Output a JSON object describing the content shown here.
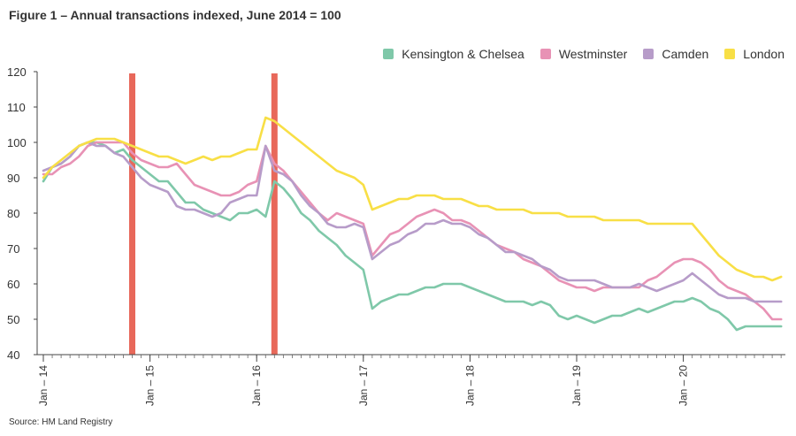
{
  "title": "Figure 1 – Annual transactions indexed, June 2014 = 100",
  "source": "Source: HM Land Registry",
  "chart_data": {
    "type": "line",
    "title": "Figure 1 – Annual transactions indexed, June 2014 = 100",
    "xlabel": "",
    "ylabel": "",
    "ylim": [
      40,
      120
    ],
    "yticks": [
      "40",
      "50",
      "60",
      "70",
      "80",
      "90",
      "100",
      "110",
      "120"
    ],
    "xlim": [
      "Jan 2014",
      "Dec 2020"
    ],
    "x_ticks": [
      "Jan – 14",
      "Jan – 15",
      "Jan – 16",
      "Jan – 17",
      "Jan – 18",
      "Jan – 19",
      "Jan – 20"
    ],
    "grid": false,
    "legend_position": "top-right",
    "x": [
      "Jan 2014",
      "Feb 2014",
      "Mar 2014",
      "Apr 2014",
      "May 2014",
      "Jun 2014",
      "Jul 2014",
      "Aug 2014",
      "Sep 2014",
      "Oct 2014",
      "Nov 2014",
      "Dec 2014",
      "Jan 2015",
      "Feb 2015",
      "Mar 2015",
      "Apr 2015",
      "May 2015",
      "Jun 2015",
      "Jul 2015",
      "Aug 2015",
      "Sep 2015",
      "Oct 2015",
      "Nov 2015",
      "Dec 2015",
      "Jan 2016",
      "Feb 2016",
      "Mar 2016",
      "Apr 2016",
      "May 2016",
      "Jun 2016",
      "Jul 2016",
      "Aug 2016",
      "Sep 2016",
      "Oct 2016",
      "Nov 2016",
      "Dec 2016",
      "Jan 2017",
      "Feb 2017",
      "Mar 2017",
      "Apr 2017",
      "May 2017",
      "Jun 2017",
      "Jul 2017",
      "Aug 2017",
      "Sep 2017",
      "Oct 2017",
      "Nov 2017",
      "Dec 2017",
      "Jan 2018",
      "Feb 2018",
      "Mar 2018",
      "Apr 2018",
      "May 2018",
      "Jun 2018",
      "Jul 2018",
      "Aug 2018",
      "Sep 2018",
      "Oct 2018",
      "Nov 2018",
      "Dec 2018",
      "Jan 2019",
      "Feb 2019",
      "Mar 2019",
      "Apr 2019",
      "May 2019",
      "Jun 2019",
      "Jul 2019",
      "Aug 2019",
      "Sep 2019",
      "Oct 2019",
      "Nov 2019",
      "Dec 2019",
      "Jan 2020",
      "Feb 2020",
      "Mar 2020",
      "Apr 2020",
      "May 2020",
      "Jun 2020",
      "Jul 2020",
      "Aug 2020",
      "Sep 2020",
      "Oct 2020",
      "Nov 2020",
      "Dec 2020"
    ],
    "series": [
      {
        "name": "Kensington & Chelsea",
        "color": "#7fc8a9",
        "values": [
          89,
          93,
          94,
          96,
          99,
          100,
          100,
          99,
          97,
          98,
          95,
          93,
          91,
          89,
          89,
          86,
          83,
          83,
          81,
          80,
          79,
          78,
          80,
          80,
          81,
          79,
          89,
          87,
          84,
          80,
          78,
          75,
          73,
          71,
          68,
          66,
          64,
          53,
          55,
          56,
          57,
          57,
          58,
          59,
          59,
          60,
          60,
          60,
          59,
          58,
          57,
          56,
          55,
          55,
          55,
          54,
          55,
          54,
          51,
          50,
          51,
          50,
          49,
          50,
          51,
          51,
          52,
          53,
          52,
          53,
          54,
          55,
          55,
          56,
          55,
          53,
          52,
          50,
          47,
          48,
          48,
          48,
          48,
          48
        ]
      },
      {
        "name": "Westminster",
        "color": "#e892b5",
        "values": [
          91,
          91,
          93,
          94,
          96,
          99,
          100,
          100,
          100,
          100,
          97,
          95,
          94,
          93,
          93,
          94,
          91,
          88,
          87,
          86,
          85,
          85,
          86,
          88,
          89,
          99,
          94,
          92,
          89,
          86,
          83,
          80,
          78,
          80,
          79,
          78,
          77,
          68,
          71,
          74,
          75,
          77,
          79,
          80,
          81,
          80,
          78,
          78,
          77,
          75,
          73,
          71,
          70,
          69,
          67,
          66,
          65,
          63,
          61,
          60,
          59,
          59,
          58,
          59,
          59,
          59,
          59,
          59,
          61,
          62,
          64,
          66,
          67,
          67,
          66,
          64,
          61,
          59,
          58,
          57,
          55,
          53,
          50,
          50
        ]
      },
      {
        "name": "Camden",
        "color": "#b79cc9",
        "values": [
          92,
          93,
          94,
          96,
          99,
          100,
          99,
          99,
          97,
          96,
          93,
          90,
          88,
          87,
          86,
          82,
          81,
          81,
          80,
          79,
          80,
          83,
          84,
          85,
          85,
          99,
          92,
          91,
          89,
          85,
          82,
          80,
          77,
          76,
          76,
          77,
          76,
          67,
          69,
          71,
          72,
          74,
          75,
          77,
          77,
          78,
          77,
          77,
          76,
          74,
          73,
          71,
          69,
          69,
          68,
          67,
          65,
          64,
          62,
          61,
          61,
          61,
          61,
          60,
          59,
          59,
          59,
          60,
          59,
          58,
          59,
          60,
          61,
          63,
          61,
          59,
          57,
          56,
          56,
          56,
          55,
          55,
          55,
          55
        ]
      },
      {
        "name": "London",
        "color": "#f8df46",
        "values": [
          90,
          93,
          95,
          97,
          99,
          100,
          101,
          101,
          101,
          100,
          99,
          98,
          97,
          96,
          96,
          95,
          94,
          95,
          96,
          95,
          96,
          96,
          97,
          98,
          98,
          107,
          106,
          104,
          102,
          100,
          98,
          96,
          94,
          92,
          91,
          90,
          88,
          81,
          82,
          83,
          84,
          84,
          85,
          85,
          85,
          84,
          84,
          84,
          83,
          82,
          82,
          81,
          81,
          81,
          81,
          80,
          80,
          80,
          80,
          79,
          79,
          79,
          79,
          78,
          78,
          78,
          78,
          78,
          77,
          77,
          77,
          77,
          77,
          77,
          74,
          71,
          68,
          66,
          64,
          63,
          62,
          62,
          61,
          62
        ]
      }
    ],
    "annotations": [
      {
        "type": "vertical-bar",
        "x": "Nov 2014",
        "color": "#e8685a"
      },
      {
        "type": "vertical-bar",
        "x": "Mar 2016",
        "color": "#e8685a"
      }
    ]
  }
}
